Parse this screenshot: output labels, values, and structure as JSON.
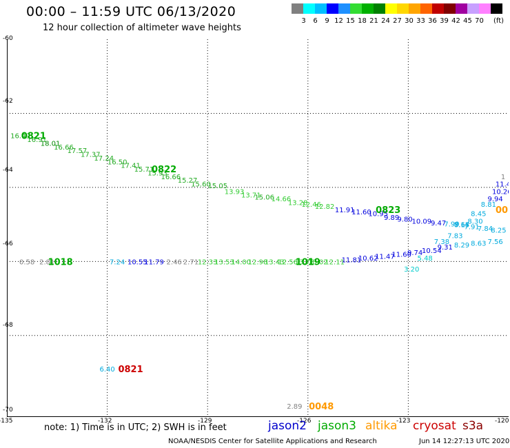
{
  "header": {
    "title": "00:00 – 11:59 UTC 06/13/2020",
    "subtitle": "12 hour collection of altimeter wave heights"
  },
  "colorbar": {
    "colors": [
      "#808080",
      "#00ffff",
      "#00bfff",
      "#0000ff",
      "#1e90ff",
      "#33dd33",
      "#00b000",
      "#008000",
      "#ffff00",
      "#ffd700",
      "#ffa500",
      "#ff6400",
      "#c00000",
      "#800000",
      "#a000a0",
      "#c8a0ff",
      "#ff80ff",
      "#000000"
    ],
    "labels": [
      "3",
      "6",
      "9",
      "12",
      "15",
      "18",
      "21",
      "24",
      "27",
      "30",
      "33",
      "36",
      "39",
      "42",
      "45",
      "70"
    ],
    "unit": "(ft)"
  },
  "axes": {
    "lat_labels": [
      "-60",
      "-62",
      "-64",
      "-66",
      "-68",
      "-70"
    ],
    "lon_labels": [
      "-135",
      "-132",
      "-129",
      "-126",
      "-123",
      "-120"
    ]
  },
  "chart_data": {
    "type": "map",
    "lon_range": [
      -135,
      -120
    ],
    "lat_range": [
      -70.2,
      -60
    ],
    "grid": true,
    "passes": [
      {
        "satellite": "jason3",
        "time_label": "0821",
        "label_lon": -134.2,
        "label_lat": -62.6,
        "points": [
          [
            -134.6,
            -62.6,
            "16.49"
          ],
          [
            -134.1,
            -62.7,
            "16.91"
          ],
          [
            -133.7,
            -62.8,
            "18.01"
          ],
          [
            -133.3,
            -62.9,
            "16.66"
          ],
          [
            -132.9,
            -63.0,
            "17.57"
          ],
          [
            -132.5,
            -63.1,
            "17.37"
          ],
          [
            -132.1,
            -63.2,
            "17.24"
          ],
          [
            -131.7,
            -63.3,
            "16.50"
          ],
          [
            -131.3,
            -63.4,
            "17.41"
          ],
          [
            -130.9,
            -63.5,
            "15.71"
          ],
          [
            -130.5,
            -63.6,
            "15.93"
          ],
          [
            -130.1,
            -63.7,
            "16.66"
          ],
          [
            -129.6,
            -63.8,
            "15.27"
          ],
          [
            -129.2,
            -63.9,
            "15.60"
          ],
          [
            -128.7,
            -63.95,
            "15.05"
          ],
          [
            -128.2,
            -64.1,
            "13.93"
          ],
          [
            -127.7,
            -64.2,
            "13.71"
          ],
          [
            -127.3,
            -64.25,
            "15.06"
          ],
          [
            -126.8,
            -64.3,
            "14.66"
          ],
          [
            -126.3,
            -64.4,
            "13.28"
          ],
          [
            -125.9,
            -64.45,
            "12.46"
          ],
          [
            -125.5,
            -64.5,
            "12.82"
          ],
          [
            -124.9,
            -64.6,
            "11.91"
          ],
          [
            -124.4,
            -64.65,
            "11.60"
          ],
          [
            -123.9,
            -64.7,
            "10.95"
          ],
          [
            -123.5,
            -64.8,
            "9.89"
          ],
          [
            -123.1,
            -64.85,
            "9.80"
          ],
          [
            -122.6,
            -64.9,
            "10.09"
          ],
          [
            -122.1,
            -64.95,
            "9.47"
          ],
          [
            -121.7,
            -64.98,
            "7.99"
          ],
          [
            -121.4,
            -65.0,
            "8.15"
          ],
          [
            -121.1,
            -65.05,
            "7.91"
          ],
          [
            -120.7,
            -65.1,
            "7.84"
          ],
          [
            -120.3,
            -65.15,
            "8.25"
          ]
        ],
        "extra_labels": [
          {
            "text": "0822",
            "lon": -130.3,
            "lat": -63.5
          },
          {
            "text": "0823",
            "lon": -123.6,
            "lat": -64.6
          }
        ]
      },
      {
        "satellite": "jason3",
        "time_label": "1018",
        "label_lon": -133.4,
        "label_lat": -66.0,
        "points": [
          [
            -134.4,
            -66.0,
            "0.58"
          ],
          [
            -133.8,
            -66.0,
            "2.81"
          ],
          [
            -131.7,
            -66.0,
            "7.24"
          ],
          [
            -131.1,
            -66.0,
            "10.55"
          ],
          [
            -130.6,
            -66.0,
            "11.79"
          ],
          [
            -130.0,
            -66.0,
            "2.46"
          ],
          [
            -129.5,
            -66.0,
            "2.71"
          ],
          [
            -129.0,
            -66.0,
            "12.33"
          ],
          [
            -128.5,
            -66.0,
            "13.53"
          ],
          [
            -128.0,
            -66.0,
            "14.00"
          ],
          [
            -127.5,
            -66.0,
            "12.98"
          ],
          [
            -127.0,
            -66.0,
            "13.43"
          ],
          [
            -126.6,
            -66.0,
            "12.56"
          ],
          [
            -126.1,
            -66.0,
            "13.73"
          ],
          [
            -125.7,
            -66.0,
            "13.02"
          ],
          [
            -125.2,
            -66.0,
            "12.11"
          ],
          [
            -124.7,
            -65.95,
            "11.81"
          ],
          [
            -124.2,
            -65.9,
            "10.62"
          ],
          [
            -123.7,
            -65.85,
            "11.47"
          ],
          [
            -123.2,
            -65.8,
            "11.60"
          ],
          [
            -122.8,
            -65.75,
            "9.74"
          ],
          [
            -122.3,
            -65.7,
            "10.54"
          ],
          [
            -121.9,
            -65.6,
            "9.31"
          ],
          [
            -121.4,
            -65.55,
            "8.29"
          ],
          [
            -120.9,
            -65.5,
            "8.63"
          ],
          [
            -120.4,
            -65.45,
            "7.56"
          ]
        ],
        "extra_labels": [
          {
            "text": "1019",
            "lon": -126.0,
            "lat": -66.0
          }
        ]
      },
      {
        "satellite": "jason2",
        "time_label": "",
        "points": [
          [
            -122.5,
            -65.9,
            "5.48"
          ],
          [
            -122.9,
            -66.2,
            "3.20"
          ],
          [
            -122.0,
            -65.45,
            "7.38"
          ],
          [
            -121.6,
            -65.3,
            "7.83"
          ],
          [
            -121.4,
            -65.0,
            "7.64"
          ],
          [
            -121.0,
            -64.9,
            "8.30"
          ],
          [
            -120.9,
            -64.7,
            "8.45"
          ],
          [
            -120.6,
            -64.45,
            "8.81"
          ],
          [
            -120.4,
            -64.3,
            "9.94"
          ],
          [
            -120.2,
            -64.1,
            "10.26"
          ],
          [
            -120.1,
            -63.9,
            "11.4"
          ],
          [
            -120.05,
            -63.7,
            "1"
          ]
        ]
      },
      {
        "satellite": "altika",
        "time_label": "00",
        "label_lon": -120.2,
        "label_lat": -64.6,
        "points": []
      },
      {
        "satellite": "cryosat",
        "time_label": "0821",
        "label_lon": -131.3,
        "label_lat": -68.9,
        "points": [
          [
            -132.0,
            -68.9,
            "6.40"
          ]
        ]
      },
      {
        "satellite": "altika",
        "time_label": "0048",
        "label_lon": -125.6,
        "label_lat": -69.9,
        "points": [
          [
            -126.4,
            -69.9,
            "2.89"
          ]
        ]
      }
    ]
  },
  "legend": {
    "note": "note:  1) Time is in UTC;  2) SWH is in feet",
    "satellites": [
      {
        "name": "jason2",
        "color": "#0000cc"
      },
      {
        "name": "jason3",
        "color": "#00aa00"
      },
      {
        "name": "altika",
        "color": "#ff9900"
      },
      {
        "name": "cryosat",
        "color": "#cc0000"
      },
      {
        "name": "s3a",
        "color": "#8b0000"
      }
    ]
  },
  "footer": {
    "left": "NOAA/NESDIS Center for Satellite Applications and Research",
    "right": "Jun 14 12:27:13 UTC 2020"
  }
}
